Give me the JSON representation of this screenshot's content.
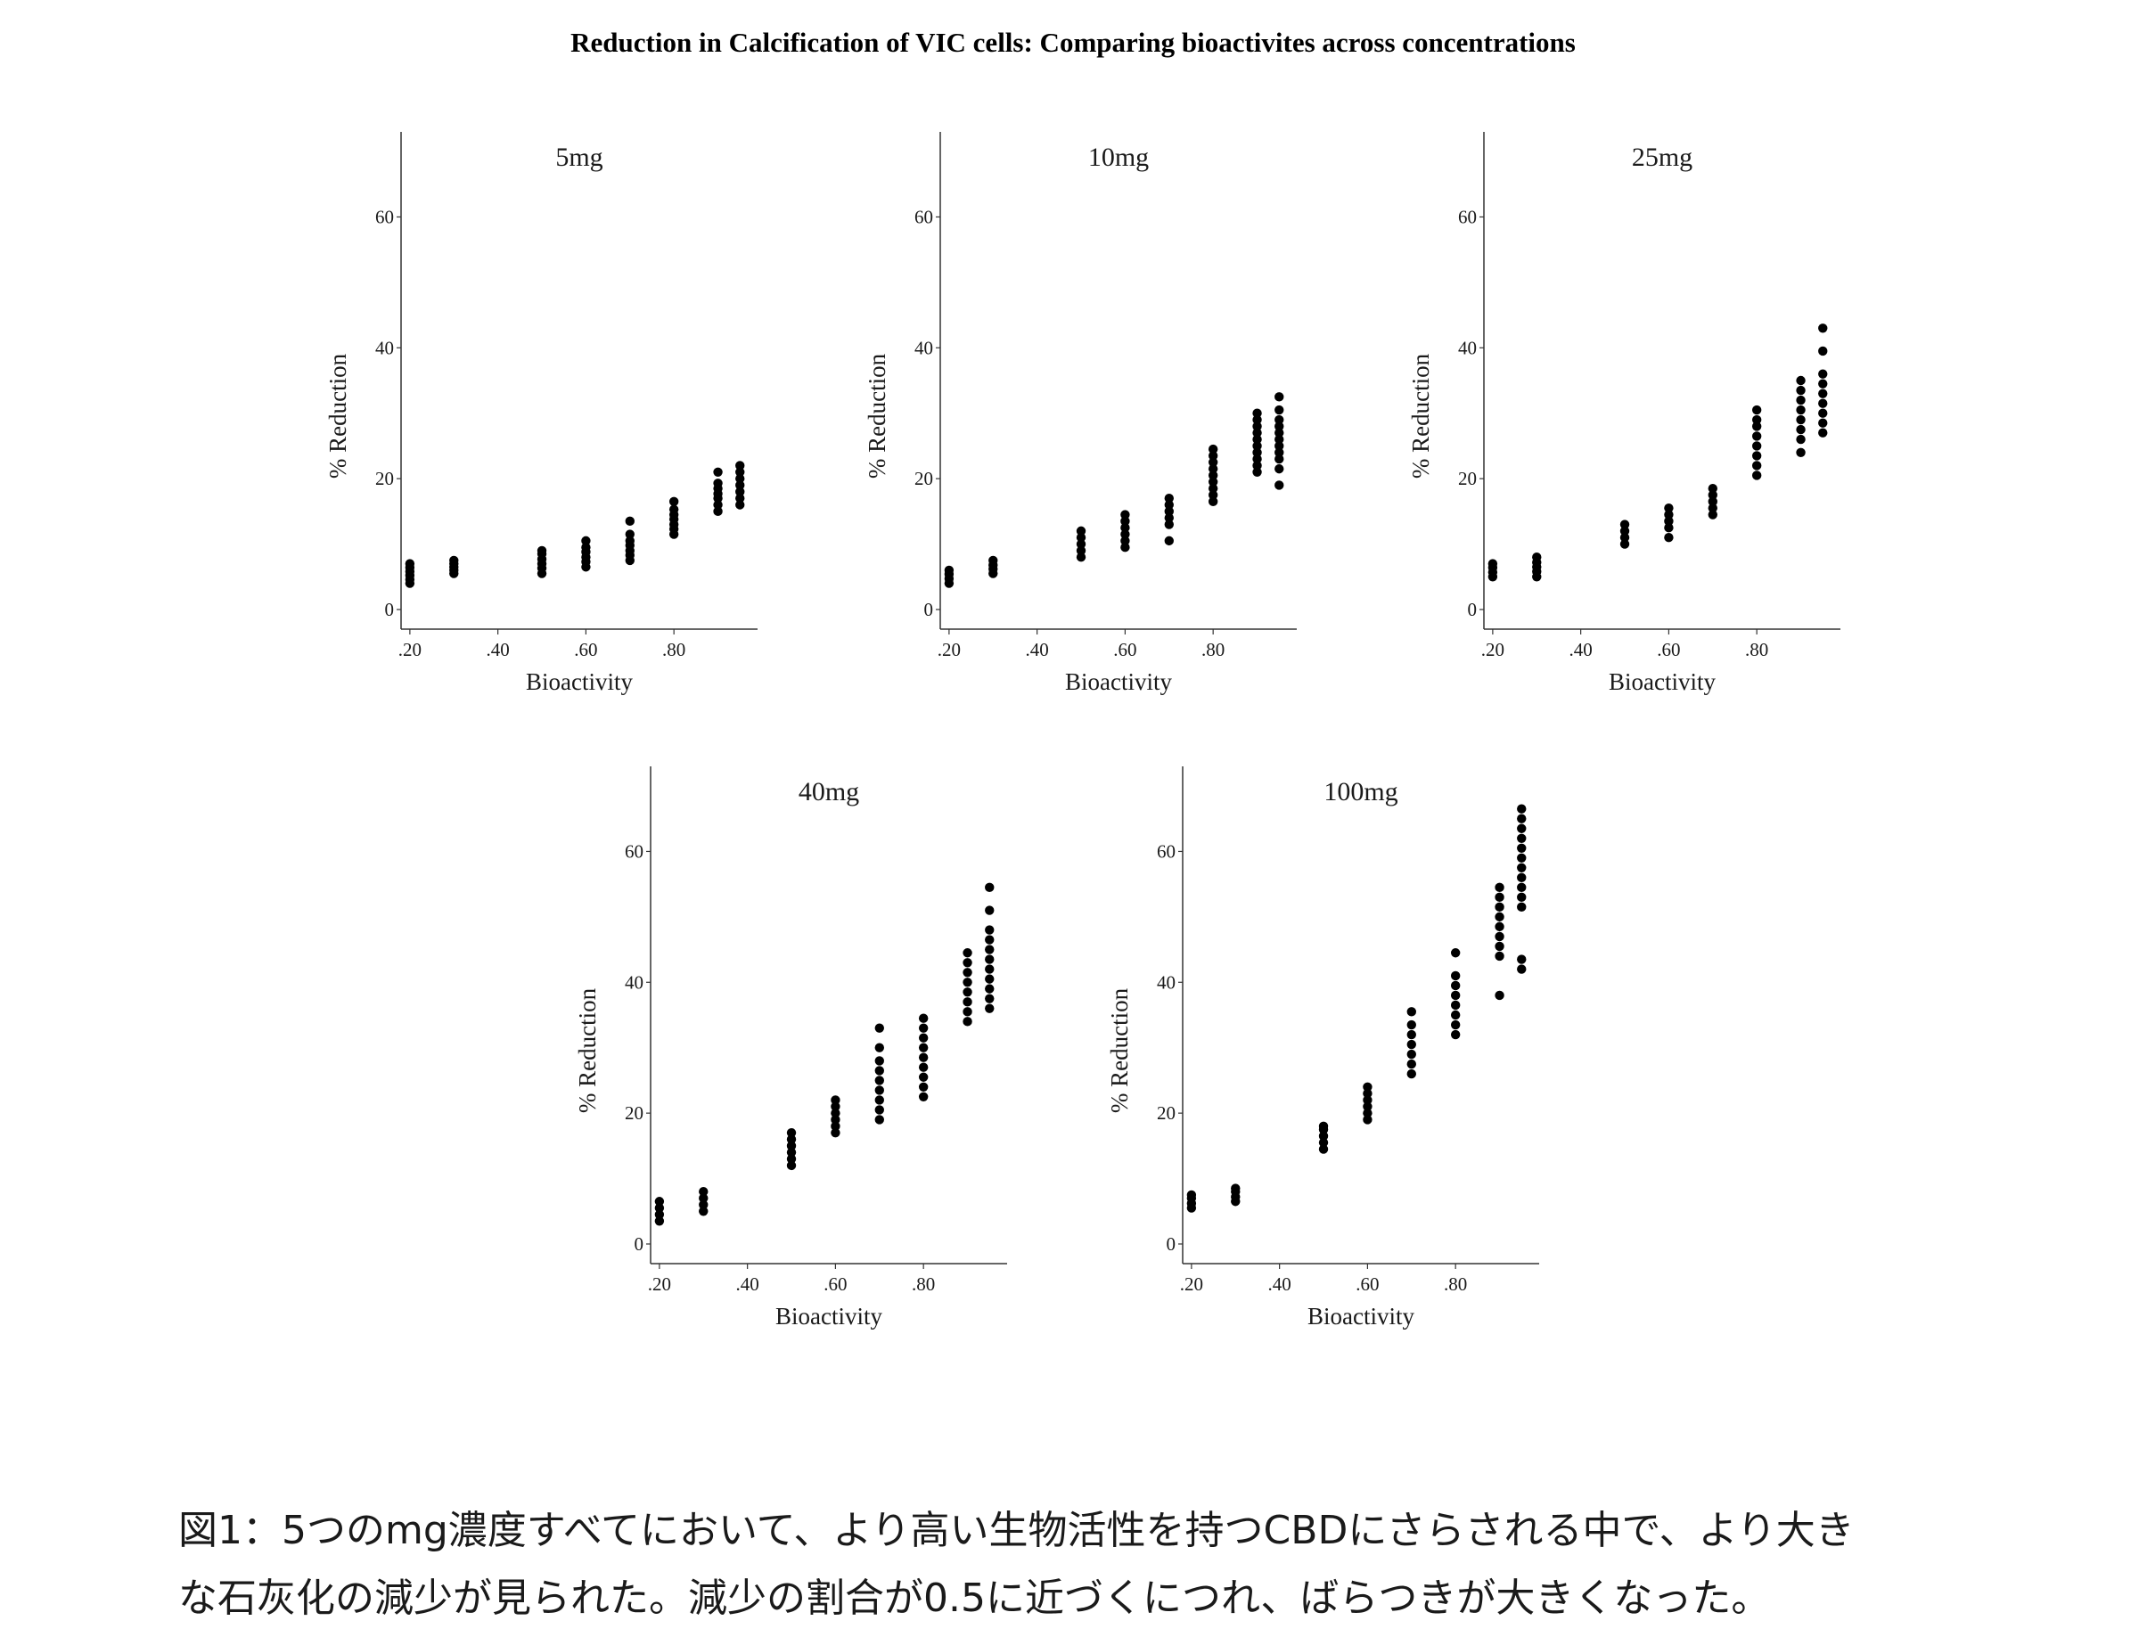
{
  "title": "Reduction in Calcification of VIC cells: Comparing bioactivites across concentrations",
  "caption": {
    "line1": "図1：5つのmg濃度すべてにおいて、より高い生物活性を持つCBDにさらされる中で、より大き",
    "line2": "な石灰化の減少が見られた。減少の割合が0.5に近づくにつれ、ばらつきが大きくなった。"
  },
  "colors": {
    "point": "#000000",
    "axis": "#333333",
    "text": "#1a1a1a"
  },
  "chart_data": [
    {
      "type": "scatter",
      "title": "5mg",
      "xlabel": "Bioactivity",
      "ylabel": "% Reduction",
      "xlim": [
        0.18,
        0.99
      ],
      "ylim": [
        -3,
        73
      ],
      "xticks": [
        0.2,
        0.4,
        0.6,
        0.8
      ],
      "xtick_labels": [
        ".20",
        ".40",
        ".60",
        ".80"
      ],
      "yticks": [
        0,
        20,
        40,
        60
      ],
      "ytick_labels": [
        "0",
        "20",
        "40",
        "60"
      ],
      "grid": false,
      "groups": [
        {
          "x": 0.2,
          "y": [
            4,
            4.6,
            5.2,
            5.8,
            6.4,
            7
          ]
        },
        {
          "x": 0.3,
          "y": [
            5.5,
            6,
            6.5,
            7,
            7.5
          ]
        },
        {
          "x": 0.5,
          "y": [
            5.5,
            6.3,
            7,
            7.7,
            8.5,
            9
          ]
        },
        {
          "x": 0.6,
          "y": [
            6.5,
            7.3,
            8,
            8.8,
            9.5,
            10.5
          ]
        },
        {
          "x": 0.7,
          "y": [
            7.5,
            8.3,
            9,
            9.8,
            10.5,
            11.5,
            13.5
          ]
        },
        {
          "x": 0.8,
          "y": [
            11.5,
            12.3,
            13,
            13.8,
            14.5,
            15.3,
            16.5
          ]
        },
        {
          "x": 0.9,
          "y": [
            15,
            16,
            17,
            17.7,
            18.5,
            19.3,
            21
          ]
        },
        {
          "x": 0.95,
          "y": [
            16,
            17,
            18,
            19,
            20,
            21,
            22
          ]
        }
      ]
    },
    {
      "type": "scatter",
      "title": "10mg",
      "xlabel": "Bioactivity",
      "ylabel": "% Reduction",
      "xlim": [
        0.18,
        0.99
      ],
      "ylim": [
        -3,
        73
      ],
      "xticks": [
        0.2,
        0.4,
        0.6,
        0.8
      ],
      "xtick_labels": [
        ".20",
        ".40",
        ".60",
        ".80"
      ],
      "yticks": [
        0,
        20,
        40,
        60
      ],
      "ytick_labels": [
        "0",
        "20",
        "40",
        "60"
      ],
      "grid": false,
      "groups": [
        {
          "x": 0.2,
          "y": [
            4,
            4.7,
            5.4,
            6
          ]
        },
        {
          "x": 0.3,
          "y": [
            5.5,
            6.2,
            6.8,
            7.5
          ]
        },
        {
          "x": 0.5,
          "y": [
            8,
            9,
            10,
            11,
            12
          ]
        },
        {
          "x": 0.6,
          "y": [
            9.5,
            10.5,
            11.5,
            12.5,
            13.5,
            14.5
          ]
        },
        {
          "x": 0.7,
          "y": [
            10.5,
            13,
            14,
            15,
            16,
            17
          ]
        },
        {
          "x": 0.8,
          "y": [
            16.5,
            17.5,
            18.5,
            19.5,
            20.5,
            21.5,
            22.5,
            23.5,
            24.5
          ]
        },
        {
          "x": 0.9,
          "y": [
            21,
            22,
            23,
            24,
            25,
            26,
            27,
            28,
            29,
            30
          ]
        },
        {
          "x": 0.95,
          "y": [
            19,
            21.5,
            23,
            24,
            25,
            26,
            27,
            28,
            29,
            30.5,
            32.5
          ]
        }
      ]
    },
    {
      "type": "scatter",
      "title": "25mg",
      "xlabel": "Bioactivity",
      "ylabel": "% Reduction",
      "xlim": [
        0.18,
        0.99
      ],
      "ylim": [
        -3,
        73
      ],
      "xticks": [
        0.2,
        0.4,
        0.6,
        0.8
      ],
      "xtick_labels": [
        ".20",
        ".40",
        ".60",
        ".80"
      ],
      "yticks": [
        0,
        20,
        40,
        60
      ],
      "ytick_labels": [
        "0",
        "20",
        "40",
        "60"
      ],
      "grid": false,
      "groups": [
        {
          "x": 0.2,
          "y": [
            5,
            5.7,
            6.4,
            7
          ]
        },
        {
          "x": 0.3,
          "y": [
            5,
            5.8,
            6.5,
            7.2,
            8
          ]
        },
        {
          "x": 0.5,
          "y": [
            10,
            11,
            12,
            13
          ]
        },
        {
          "x": 0.6,
          "y": [
            11,
            12.5,
            13.5,
            14.5,
            15.5
          ]
        },
        {
          "x": 0.7,
          "y": [
            14.5,
            15.5,
            16.5,
            17.5,
            18.5
          ]
        },
        {
          "x": 0.8,
          "y": [
            20.5,
            22,
            23.5,
            25,
            26.5,
            28,
            29,
            30.5
          ]
        },
        {
          "x": 0.9,
          "y": [
            24,
            26,
            27.5,
            29,
            30.5,
            32,
            33.5,
            35
          ]
        },
        {
          "x": 0.95,
          "y": [
            27,
            28.5,
            30,
            31.5,
            33,
            34.5,
            36,
            39.5,
            43
          ]
        }
      ]
    },
    {
      "type": "scatter",
      "title": "40mg",
      "xlabel": "Bioactivity",
      "ylabel": "% Reduction",
      "xlim": [
        0.18,
        0.99
      ],
      "ylim": [
        -3,
        73
      ],
      "xticks": [
        0.2,
        0.4,
        0.6,
        0.8
      ],
      "xtick_labels": [
        ".20",
        ".40",
        ".60",
        ".80"
      ],
      "yticks": [
        0,
        20,
        40,
        60
      ],
      "ytick_labels": [
        "0",
        "20",
        "40",
        "60"
      ],
      "grid": false,
      "groups": [
        {
          "x": 0.2,
          "y": [
            3.5,
            4.5,
            5.5,
            6.5
          ]
        },
        {
          "x": 0.3,
          "y": [
            5,
            6,
            7,
            8
          ]
        },
        {
          "x": 0.5,
          "y": [
            12,
            13,
            14,
            15,
            16,
            17
          ]
        },
        {
          "x": 0.6,
          "y": [
            17,
            18,
            19,
            20,
            21,
            22
          ]
        },
        {
          "x": 0.7,
          "y": [
            19,
            20.5,
            22,
            23.5,
            25,
            26.5,
            28,
            30,
            33
          ]
        },
        {
          "x": 0.8,
          "y": [
            22.5,
            24,
            25.5,
            27,
            28.5,
            30,
            31.5,
            33,
            34.5
          ]
        },
        {
          "x": 0.9,
          "y": [
            34,
            35.5,
            37,
            38.5,
            40,
            41.5,
            43,
            44.5
          ]
        },
        {
          "x": 0.95,
          "y": [
            36,
            37.5,
            39,
            40.5,
            42,
            43.5,
            45,
            46.5,
            48,
            51,
            54.5
          ]
        }
      ]
    },
    {
      "type": "scatter",
      "title": "100mg",
      "xlabel": "Bioactivity",
      "ylabel": "% Reduction",
      "xlim": [
        0.18,
        0.99
      ],
      "ylim": [
        -3,
        73
      ],
      "xticks": [
        0.2,
        0.4,
        0.6,
        0.8
      ],
      "xtick_labels": [
        ".20",
        ".40",
        ".60",
        ".80"
      ],
      "yticks": [
        0,
        20,
        40,
        60
      ],
      "ytick_labels": [
        "0",
        "20",
        "40",
        "60"
      ],
      "grid": false,
      "groups": [
        {
          "x": 0.2,
          "y": [
            5.5,
            6.2,
            7,
            7.5
          ]
        },
        {
          "x": 0.3,
          "y": [
            6.5,
            7.2,
            8,
            8.5
          ]
        },
        {
          "x": 0.5,
          "y": [
            14.5,
            15.5,
            16.5,
            17.5,
            18
          ]
        },
        {
          "x": 0.6,
          "y": [
            19,
            20,
            21,
            22,
            23,
            24
          ]
        },
        {
          "x": 0.7,
          "y": [
            26,
            27.5,
            29,
            30.5,
            32,
            33.5,
            35.5
          ]
        },
        {
          "x": 0.8,
          "y": [
            32,
            33.5,
            35,
            36.5,
            38,
            39.5,
            41,
            44.5
          ]
        },
        {
          "x": 0.9,
          "y": [
            38,
            44,
            45.5,
            47,
            48.5,
            50,
            51.5,
            53,
            54.5
          ]
        },
        {
          "x": 0.95,
          "y": [
            42,
            43.5,
            51.5,
            53,
            54.5,
            56,
            57.5,
            59,
            60.5,
            62,
            63.5,
            65,
            66.5
          ]
        }
      ]
    }
  ]
}
